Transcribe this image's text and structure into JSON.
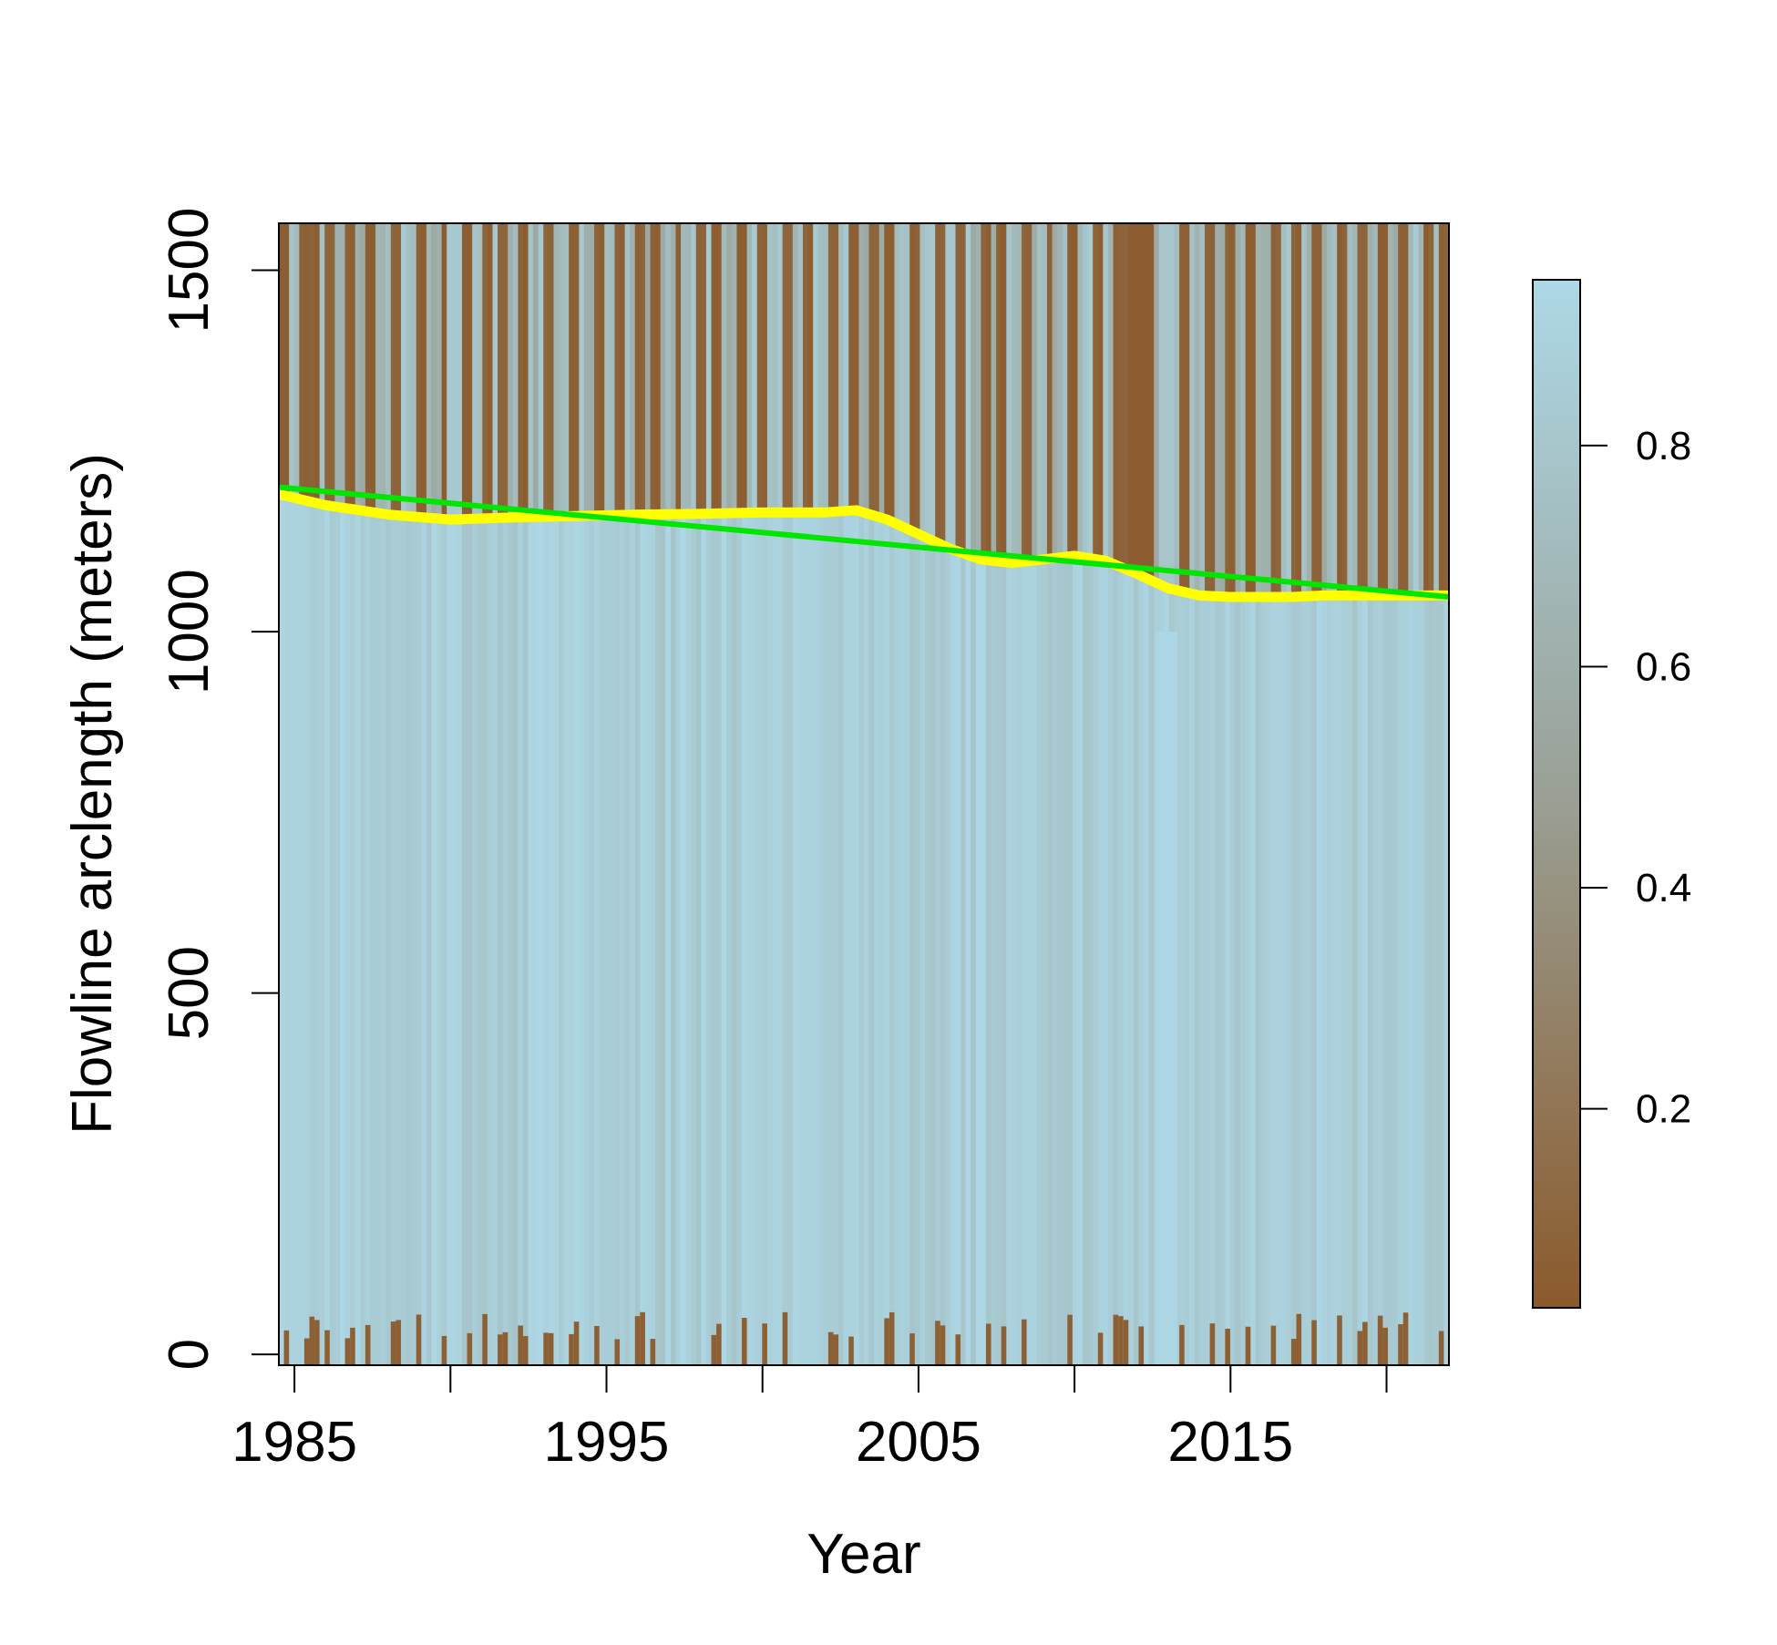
{
  "chart_data": {
    "type": "heatmap",
    "title": "",
    "xlabel": "Year",
    "ylabel": "Flowline arclength (meters)",
    "xlim": [
      1984.5,
      2022
    ],
    "ylim": [
      -15,
      1565
    ],
    "x_ticks": [
      1985,
      1990,
      1995,
      2000,
      2005,
      2010,
      2015,
      2020
    ],
    "x_tick_labels": [
      "1985",
      "1995",
      "2005",
      "2015"
    ],
    "x_tick_labels_at": [
      1985,
      1995,
      2005,
      2015
    ],
    "y_ticks": [
      0,
      500,
      1000,
      1500
    ],
    "y_tick_labels": [
      "0",
      "500",
      "1000",
      "1500"
    ],
    "colorbar": {
      "range": [
        0.02,
        0.95
      ],
      "ticks": [
        0.2,
        0.4,
        0.6,
        0.8
      ],
      "tick_labels": [
        "0.2",
        "0.4",
        "0.6",
        "0.8"
      ],
      "low_color": "#8b5a2b",
      "mid_color": "#9aa096",
      "high_color": "#add8e6"
    },
    "heatmap": {
      "description_values": "value per (year, arclength); high (~0.85) below the terminus, low (~0.05) above it on dark scenes",
      "dark_scene_years": [
        1984.7,
        1985.3,
        1985.6,
        1986.2,
        1986.8,
        1987.5,
        1988.3,
        1989.1,
        1989.8,
        1990.5,
        1991.2,
        1991.6,
        1992.4,
        1993.1,
        1993.9,
        1994.7,
        1995.4,
        1996.0,
        1996.6,
        1997.3,
        1998.0,
        1998.6,
        1999.3,
        2000.0,
        2000.8,
        2001.5,
        2002.2,
        2002.9,
        2003.5,
        2004.1,
        2004.9,
        2005.7,
        2006.4,
        2007.1,
        2007.7,
        2008.4,
        2009.2,
        2010.0,
        2010.7,
        2011.4,
        2011.8,
        2012.2,
        2013.6,
        2014.3,
        2015.0,
        2015.7,
        2016.4,
        2017.1,
        2017.8,
        2018.5,
        2019.2,
        2019.9,
        2020.6,
        2021.3,
        2021.9
      ],
      "blank_span": [
        2011.8,
        2012.6
      ]
    },
    "series": [
      {
        "name": "",
        "color": "#ffff00",
        "x": [
          1984.5,
          1986,
          1988,
          1990,
          1992,
          1994,
          1996,
          1998,
          2000,
          2002,
          2003,
          2004,
          2005,
          2006,
          2007,
          2008,
          2009,
          2010,
          2011,
          2012,
          2013,
          2014,
          2015,
          2016,
          2017,
          2018,
          2019,
          2020,
          2021,
          2022
        ],
        "y": [
          1190,
          1175,
          1162,
          1155,
          1158,
          1160,
          1162,
          1163,
          1165,
          1165,
          1168,
          1155,
          1135,
          1115,
          1100,
          1095,
          1100,
          1105,
          1098,
          1080,
          1060,
          1050,
          1048,
          1048,
          1048,
          1050,
          1050,
          1050,
          1050,
          1050
        ]
      },
      {
        "name": "",
        "color": "#00e600",
        "x": [
          1984.5,
          2022
        ],
        "y": [
          1200,
          1048
        ]
      }
    ]
  }
}
